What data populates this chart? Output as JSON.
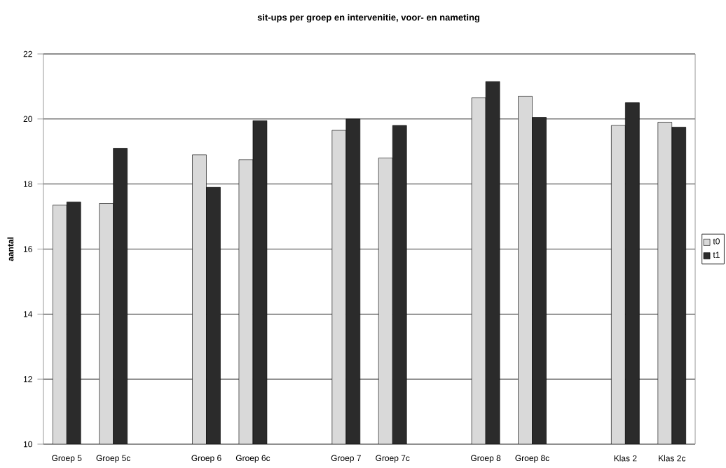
{
  "chart_data": {
    "type": "bar",
    "title": "sit-ups per groep en intervenitie, voor- en nameting",
    "ylabel": "aantal",
    "categories": [
      "Groep 5",
      "Groep 5c",
      null,
      "Groep 6",
      "Groep 6c",
      null,
      "Groep 7",
      "Groep 7c",
      null,
      "Groep 8",
      "Groep 8c",
      null,
      "Klas 2",
      "Klas 2c"
    ],
    "series": [
      {
        "name": "t0",
        "color": "#d9d9d9",
        "values": [
          17.35,
          17.4,
          null,
          18.9,
          18.75,
          null,
          19.65,
          18.8,
          null,
          20.65,
          20.7,
          null,
          19.8,
          19.9
        ]
      },
      {
        "name": "t1",
        "color": "#2b2b2b",
        "values": [
          17.45,
          19.1,
          null,
          17.9,
          19.95,
          null,
          20.0,
          19.8,
          null,
          21.15,
          20.05,
          null,
          20.5,
          19.75
        ]
      }
    ],
    "ylim": [
      10,
      22
    ],
    "yticks": [
      10,
      12,
      14,
      16,
      18,
      20,
      22
    ],
    "grid": "y",
    "legend": "right"
  }
}
